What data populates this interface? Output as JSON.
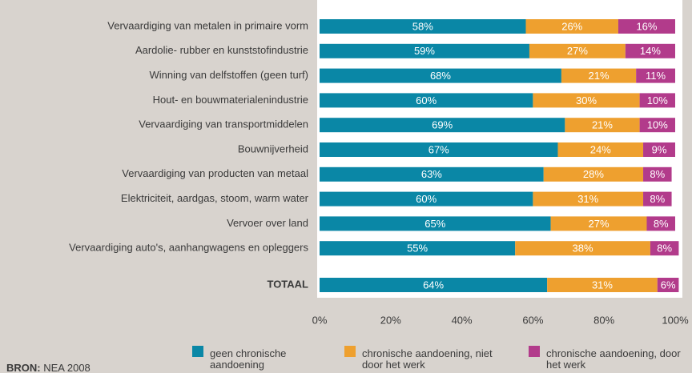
{
  "chart_data": {
    "type": "stacked-bar-horizontal",
    "categories": [
      "Vervaardiging van metalen in primaire vorm",
      "Aardolie- rubber en kunststofindustrie",
      "Winning van delfstoffen (geen turf)",
      "Hout- en bouwmaterialenindustrie",
      "Vervaardiging van transportmiddelen",
      "Bouwnijverheid",
      "Vervaardiging van producten van metaal",
      "Elektriciteit, aardgas, stoom, warm water",
      "Vervoer over land",
      "Vervaardiging auto's, aanhangwagens en opleggers",
      "TOTAAL"
    ],
    "series": [
      {
        "name": "geen chronische aandoening",
        "color": "#0a87a6",
        "values": [
          58,
          59,
          68,
          60,
          69,
          67,
          63,
          60,
          65,
          55,
          64
        ],
        "value_labels": [
          "58%",
          "59%",
          "68%",
          "60%",
          "69%",
          "67%",
          "63%",
          "60%",
          "65%",
          "55%",
          "64%"
        ]
      },
      {
        "name": "chronische aandoening, niet door het werk",
        "color": "#eea02f",
        "values": [
          26,
          27,
          21,
          30,
          21,
          24,
          28,
          31,
          27,
          38,
          31
        ],
        "value_labels": [
          "26%",
          "27%",
          "21%",
          "30%",
          "21%",
          "24%",
          "28%",
          "31%",
          "27%",
          "38%",
          "31%"
        ]
      },
      {
        "name": "chronische aandoening, door het werk",
        "color": "#b23b8b",
        "values": [
          16,
          14,
          11,
          10,
          10,
          9,
          8,
          8,
          8,
          8,
          6
        ],
        "value_labels": [
          "16%",
          "14%",
          "11%",
          "10%",
          "10%",
          "9%",
          "8%",
          "8%",
          "8%",
          "8%",
          "6%"
        ]
      }
    ],
    "xlim": [
      0,
      100
    ],
    "xticks": [
      {
        "value": 0,
        "label": "0%"
      },
      {
        "value": 20,
        "label": "20%"
      },
      {
        "value": 40,
        "label": "40%"
      },
      {
        "value": 60,
        "label": "60%"
      },
      {
        "value": 80,
        "label": "80%"
      },
      {
        "value": 100,
        "label": "100%"
      }
    ],
    "source_label": "BRON:",
    "source": "NEA 2008"
  }
}
